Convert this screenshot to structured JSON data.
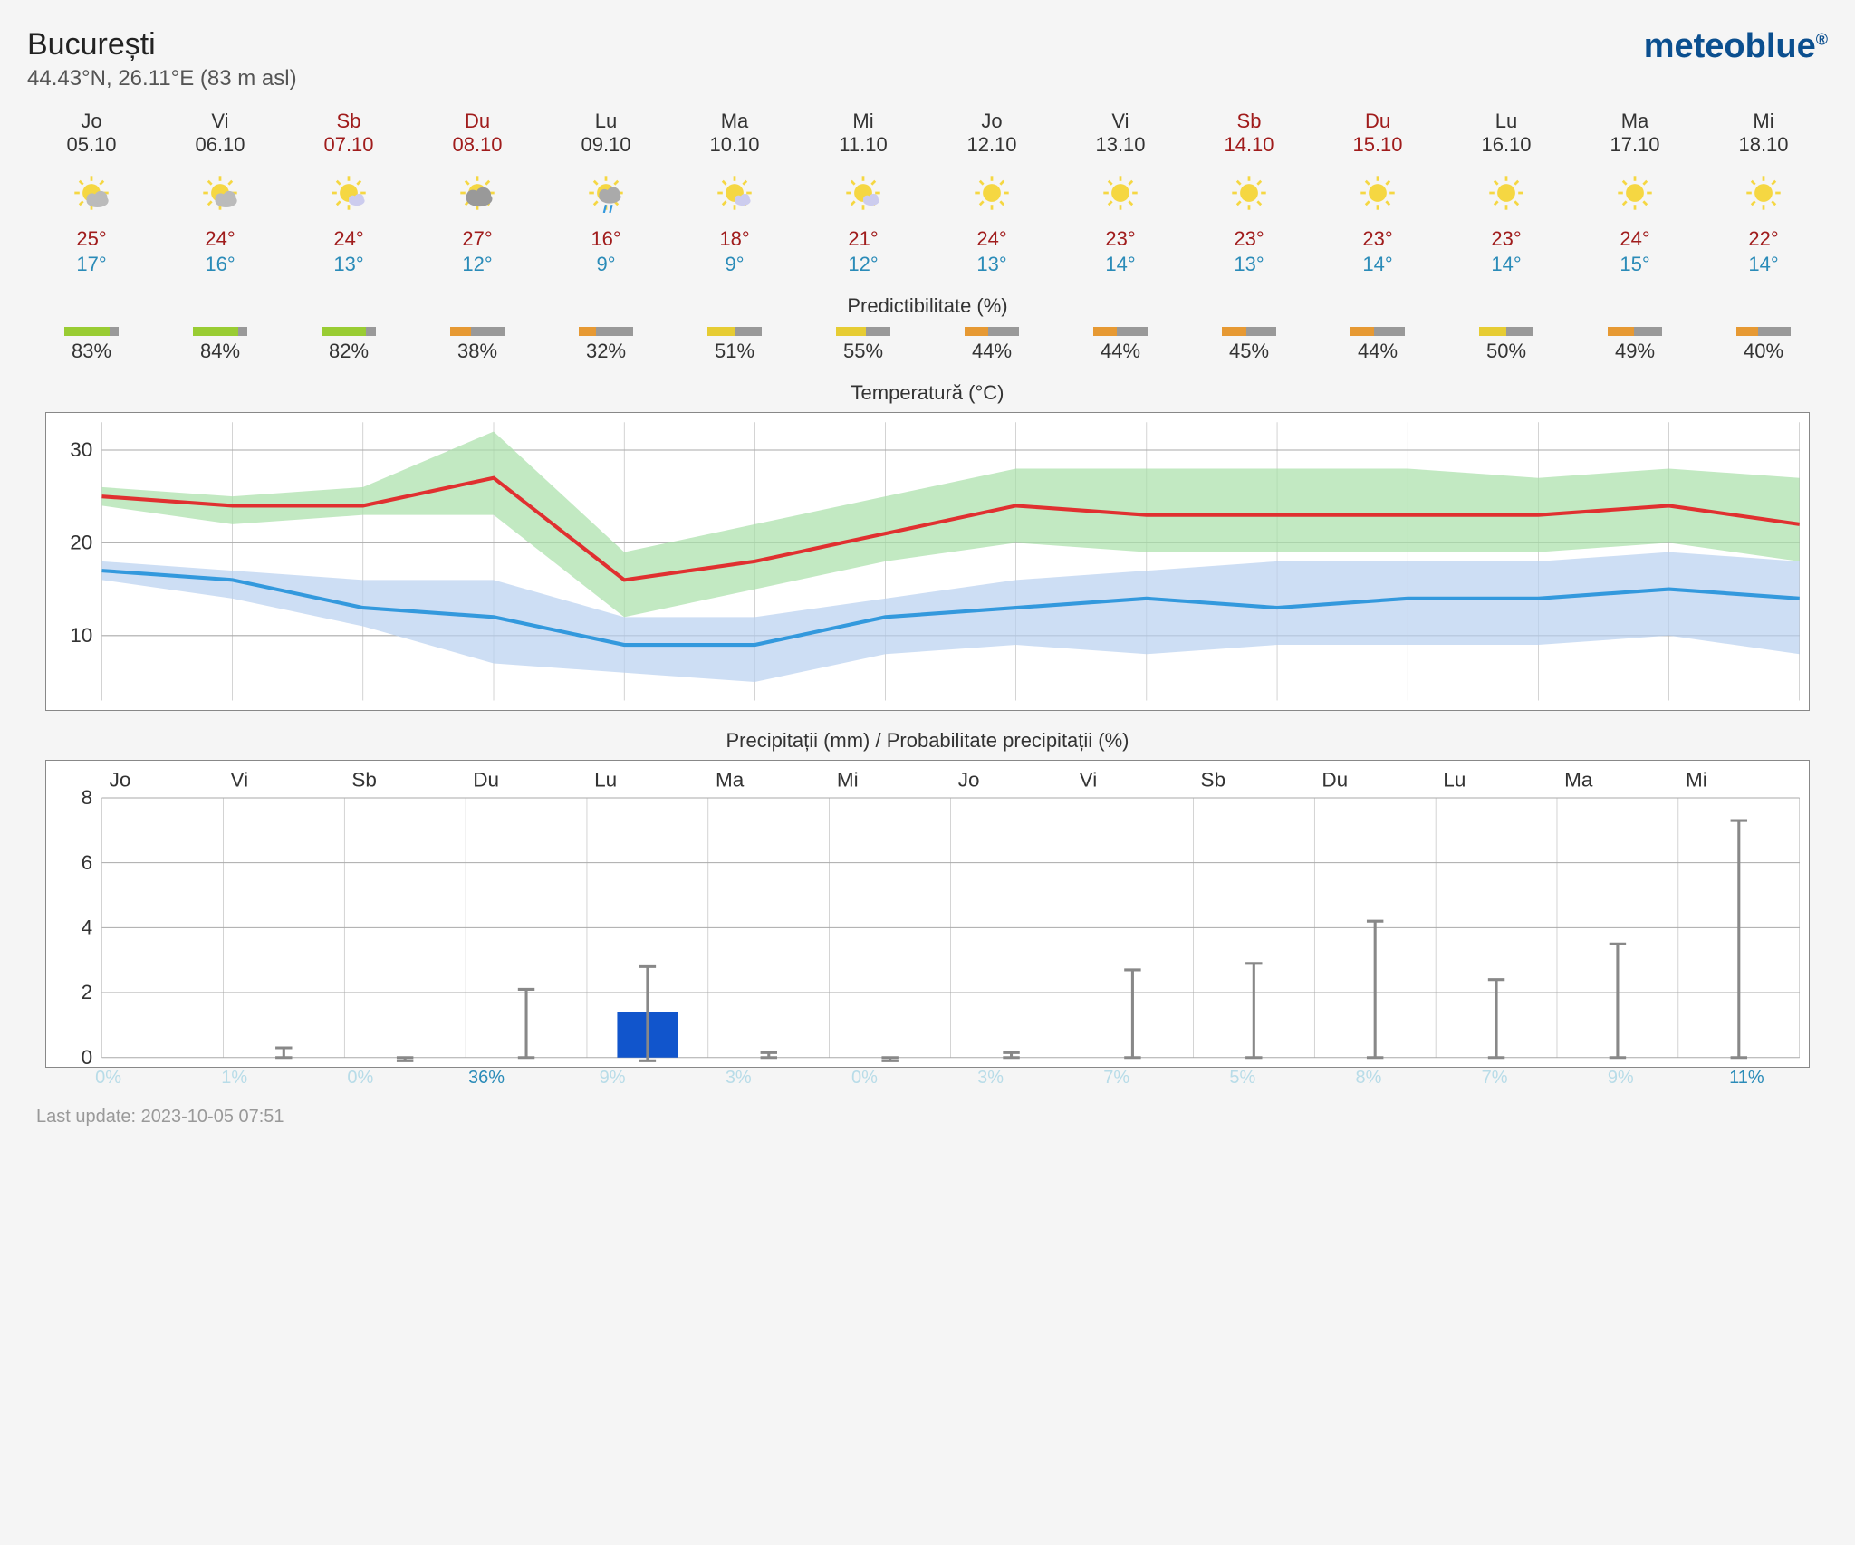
{
  "header": {
    "location": "București",
    "coords": "44.43°N, 26.11°E (83 m asl)",
    "brand": "meteoblue"
  },
  "days": [
    {
      "name": "Jo",
      "date": "05.10",
      "weekend": false,
      "icon": "partly-cloudy",
      "high": "25°",
      "low": "17°"
    },
    {
      "name": "Vi",
      "date": "06.10",
      "weekend": false,
      "icon": "partly-cloudy",
      "high": "24°",
      "low": "16°"
    },
    {
      "name": "Sb",
      "date": "07.10",
      "weekend": true,
      "icon": "sun-small-cloud",
      "high": "24°",
      "low": "13°"
    },
    {
      "name": "Du",
      "date": "08.10",
      "weekend": true,
      "icon": "mostly-cloudy",
      "high": "27°",
      "low": "12°"
    },
    {
      "name": "Lu",
      "date": "09.10",
      "weekend": false,
      "icon": "rain",
      "high": "16°",
      "low": "9°"
    },
    {
      "name": "Ma",
      "date": "10.10",
      "weekend": false,
      "icon": "sun-small-cloud",
      "high": "18°",
      "low": "9°"
    },
    {
      "name": "Mi",
      "date": "11.10",
      "weekend": false,
      "icon": "sun-small-cloud",
      "high": "21°",
      "low": "12°"
    },
    {
      "name": "Jo",
      "date": "12.10",
      "weekend": false,
      "icon": "sunny",
      "high": "24°",
      "low": "13°"
    },
    {
      "name": "Vi",
      "date": "13.10",
      "weekend": false,
      "icon": "sunny",
      "high": "23°",
      "low": "14°"
    },
    {
      "name": "Sb",
      "date": "14.10",
      "weekend": true,
      "icon": "sunny",
      "high": "23°",
      "low": "13°"
    },
    {
      "name": "Du",
      "date": "15.10",
      "weekend": true,
      "icon": "sunny",
      "high": "23°",
      "low": "14°"
    },
    {
      "name": "Lu",
      "date": "16.10",
      "weekend": false,
      "icon": "sunny",
      "high": "23°",
      "low": "14°"
    },
    {
      "name": "Ma",
      "date": "17.10",
      "weekend": false,
      "icon": "sunny",
      "high": "24°",
      "low": "15°"
    },
    {
      "name": "Mi",
      "date": "18.10",
      "weekend": false,
      "icon": "sunny",
      "high": "22°",
      "low": "14°"
    }
  ],
  "predictibility": {
    "title": "Predictibilitate (%)",
    "values": [
      "83%",
      "84%",
      "82%",
      "38%",
      "32%",
      "51%",
      "55%",
      "44%",
      "44%",
      "45%",
      "44%",
      "50%",
      "49%",
      "40%"
    ],
    "pct": [
      83,
      84,
      82,
      38,
      32,
      51,
      55,
      44,
      44,
      45,
      44,
      50,
      49,
      40
    ],
    "colors": [
      "#99cc33",
      "#99cc33",
      "#99cc33",
      "#e69933",
      "#e69933",
      "#e6cc33",
      "#e6cc33",
      "#e69933",
      "#e69933",
      "#e69933",
      "#e69933",
      "#e6cc33",
      "#e69933",
      "#e69933"
    ],
    "bg": "#999999"
  },
  "temp_chart": {
    "title": "Temperatură (°C)",
    "ylim": [
      3,
      33
    ],
    "yticks": [
      10,
      20,
      30
    ],
    "high_line": [
      25,
      24,
      24,
      27,
      16,
      18,
      21,
      24,
      23,
      23,
      23,
      23,
      24,
      22
    ],
    "low_line": [
      17,
      16,
      13,
      12,
      9,
      9,
      12,
      13,
      14,
      13,
      14,
      14,
      15,
      14
    ],
    "high_band_upper": [
      26,
      25,
      26,
      32,
      19,
      22,
      25,
      28,
      28,
      28,
      28,
      27,
      28,
      27
    ],
    "high_band_lower": [
      24,
      22,
      23,
      23,
      12,
      15,
      18,
      20,
      19,
      19,
      19,
      19,
      20,
      18
    ],
    "low_band_upper": [
      18,
      17,
      16,
      16,
      12,
      12,
      14,
      16,
      17,
      18,
      18,
      18,
      19,
      18
    ],
    "low_band_lower": [
      16,
      14,
      11,
      7,
      6,
      5,
      8,
      9,
      8,
      9,
      9,
      9,
      10,
      8
    ],
    "colors": {
      "high_line": "#e03030",
      "low_line": "#3399dd",
      "high_band": "#a8e0a8",
      "low_band": "#b8d0f0",
      "grid": "#aaaaaa",
      "bg": "#ffffff"
    },
    "line_width": 4
  },
  "precip_chart": {
    "title": "Precipitații (mm) / Probabilitate precipitații (%)",
    "day_labels": [
      "Jo",
      "Vi",
      "Sb",
      "Du",
      "Lu",
      "Ma",
      "Mi",
      "Jo",
      "Vi",
      "Sb",
      "Du",
      "Lu",
      "Ma",
      "Mi"
    ],
    "ylim": [
      0,
      8
    ],
    "yticks": [
      0,
      2,
      4,
      6,
      8
    ],
    "bars": [
      0,
      0,
      0,
      0,
      1.4,
      0,
      0,
      0,
      0,
      0,
      0,
      0,
      0,
      0
    ],
    "err_low": [
      0,
      0,
      -0.1,
      0,
      -0.1,
      0,
      -0.1,
      0,
      0,
      0,
      0,
      0,
      0,
      0
    ],
    "err_high": [
      0,
      0.3,
      0,
      2.1,
      2.8,
      0.15,
      0,
      0.15,
      2.7,
      2.9,
      4.2,
      2.4,
      3.5,
      7.3
    ],
    "has_bar": [
      false,
      false,
      false,
      false,
      true,
      false,
      false,
      false,
      false,
      false,
      false,
      false,
      false,
      false
    ],
    "has_err": [
      false,
      true,
      true,
      true,
      true,
      true,
      true,
      true,
      true,
      true,
      true,
      true,
      true,
      true
    ],
    "probs": [
      "0%",
      "1%",
      "0%",
      "36%",
      "9%",
      "3%",
      "0%",
      "3%",
      "7%",
      "5%",
      "8%",
      "7%",
      "9%",
      "11%"
    ],
    "prob_active": [
      false,
      false,
      false,
      true,
      false,
      false,
      false,
      false,
      false,
      false,
      false,
      false,
      false,
      true
    ],
    "colors": {
      "bar": "#1155cc",
      "err": "#888888",
      "grid": "#aaaaaa",
      "bg": "#ffffff"
    }
  },
  "footer": "Last update: 2023-10-05 07:51"
}
